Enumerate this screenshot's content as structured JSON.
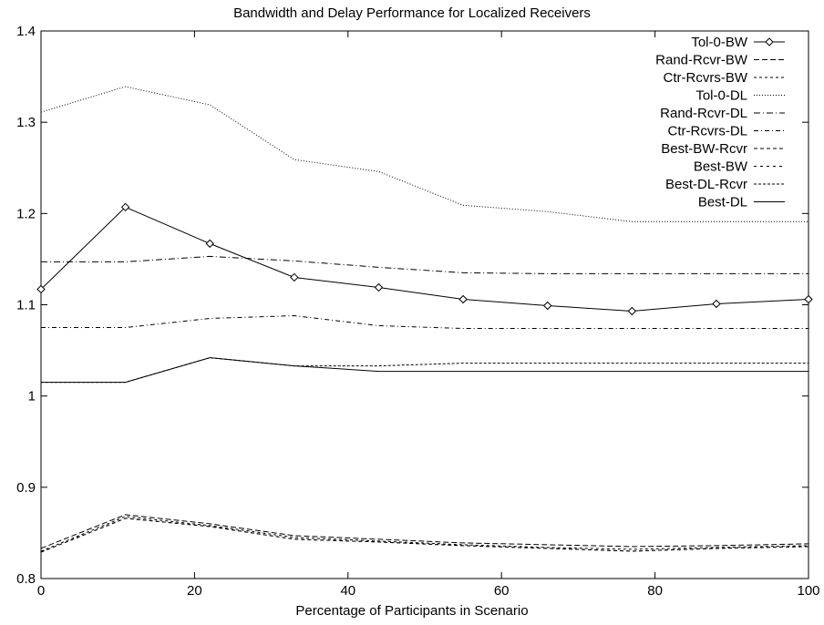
{
  "chart_data": {
    "type": "line",
    "title": "Bandwidth and Delay Performance for Localized Receivers",
    "xlabel": "Percentage of Participants in Scenario",
    "ylabel": "",
    "xlim": [
      0,
      100
    ],
    "ylim": [
      0.8,
      1.4
    ],
    "xticks": [
      "0",
      "20",
      "40",
      "60",
      "80",
      "100"
    ],
    "yticks": [
      "0.8",
      "0.9",
      "1",
      "1.1",
      "1.2",
      "1.3",
      "1.4"
    ],
    "legend_position": "top-right",
    "grid": false,
    "x": [
      0,
      11,
      22,
      33,
      44,
      55,
      66,
      77,
      88,
      100
    ],
    "series": [
      {
        "name": "Tol-0-BW",
        "dash": "solid",
        "marker": "diamond",
        "values": [
          1.117,
          1.207,
          1.167,
          1.13,
          1.119,
          1.106,
          1.099,
          1.093,
          1.101,
          1.106
        ]
      },
      {
        "name": "Rand-Rcvr-BW",
        "dash": "6,3",
        "values": [
          0.833,
          0.87,
          0.86,
          0.847,
          0.843,
          0.839,
          0.837,
          0.835,
          0.836,
          0.838
        ]
      },
      {
        "name": "Ctr-Rcvrs-BW",
        "dash": "3,3",
        "values": [
          0.83,
          0.868,
          0.858,
          0.845,
          0.841,
          0.837,
          0.834,
          0.832,
          0.834,
          0.836
        ]
      },
      {
        "name": "Tol-0-DL",
        "dash": "1,2",
        "values": [
          1.311,
          1.339,
          1.319,
          1.259,
          1.246,
          1.209,
          1.202,
          1.191,
          1.191,
          1.191
        ]
      },
      {
        "name": "Rand-Rcvr-DL",
        "dash": "7,3,1,3",
        "values": [
          1.147,
          1.147,
          1.153,
          1.148,
          1.141,
          1.135,
          1.134,
          1.134,
          1.134,
          1.134
        ]
      },
      {
        "name": "Ctr-Rcvrs-DL",
        "dash": "5,3,1,3",
        "values": [
          1.075,
          1.075,
          1.085,
          1.088,
          1.077,
          1.074,
          1.074,
          1.074,
          1.074,
          1.074
        ]
      },
      {
        "name": "Best-BW-Rcvr",
        "dash": "4,3",
        "values": [
          0.829,
          0.866,
          0.857,
          0.843,
          0.84,
          0.836,
          0.833,
          0.83,
          0.833,
          0.835
        ]
      },
      {
        "name": "Best-BW",
        "dash": "3,4",
        "values": [
          0.829,
          0.866,
          0.857,
          0.843,
          0.84,
          0.836,
          0.833,
          0.83,
          0.833,
          0.835
        ]
      },
      {
        "name": "Best-DL-Rcvr",
        "dash": "3,2",
        "values": [
          1.015,
          1.015,
          1.042,
          1.033,
          1.033,
          1.036,
          1.036,
          1.036,
          1.036,
          1.036
        ]
      },
      {
        "name": "Best-DL",
        "dash": "solid",
        "values": [
          1.015,
          1.015,
          1.042,
          1.033,
          1.027,
          1.027,
          1.027,
          1.027,
          1.027,
          1.027
        ]
      }
    ]
  }
}
